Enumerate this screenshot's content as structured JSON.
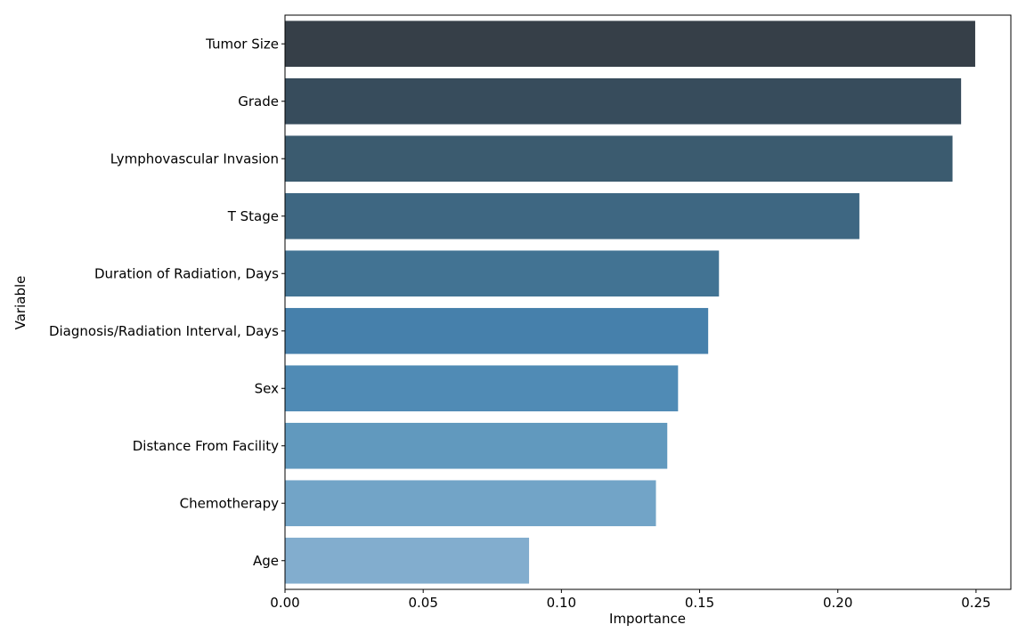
{
  "chart_data": {
    "type": "bar",
    "orientation": "horizontal",
    "title": "",
    "xlabel": "Importance",
    "ylabel": "Variable",
    "xlim": [
      0,
      0.2626
    ],
    "x_ticks": [
      "0.00",
      "0.05",
      "0.10",
      "0.15",
      "0.20",
      "0.25"
    ],
    "x_tick_values": [
      0,
      0.05,
      0.1,
      0.15,
      0.2,
      0.25
    ],
    "grid": false,
    "legend": "none",
    "categories": [
      "Tumor Size",
      "Grade",
      "Lymphovascular Invasion",
      "T Stage",
      "Duration of Radiation, Days",
      "Diagnosis/Radiation Interval, Days",
      "Sex",
      "Distance From Facility",
      "Chemotherapy",
      "Age"
    ],
    "values": [
      0.2497,
      0.2446,
      0.2415,
      0.2078,
      0.157,
      0.1531,
      0.1422,
      0.1383,
      0.1342,
      0.0883
    ],
    "colors": [
      "#363f48",
      "#374c5c",
      "#3b5b6f",
      "#3e6782",
      "#427393",
      "#4680ab",
      "#508bb5",
      "#6199be",
      "#72a4c7",
      "#82adce"
    ]
  }
}
